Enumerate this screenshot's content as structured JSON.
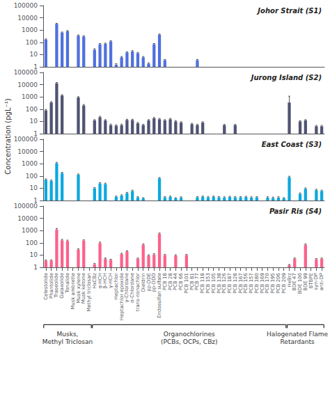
{
  "chart_data": [
    {
      "type": "bar",
      "title": "Johor Strait (S1)",
      "ylabel": "Concentration (pgL⁻¹)",
      "categories": [
        "Celestolide",
        "Phantolide",
        "Traseolide",
        "Galaxolide",
        "Tonalide",
        "Musk ambrette",
        "Musk xylene",
        "Musk ketone",
        "Methyl triclosan",
        "HxCBz",
        "α-HCH",
        "β-HCH",
        "γ-HCH",
        "Heptachlor",
        "Heptachlor epoxide",
        "γ-Chlordane",
        "α-Chlordane",
        "trans-nonachlor",
        "Dieldrin",
        "pp-DDE",
        "pp-DDD",
        "Endosulfan sulfate",
        "PCB 18",
        "PCB 28",
        "PCB 44",
        "PCB 66",
        "PCB 101",
        "PCB 81",
        "PCB 77",
        "PCB 118",
        "PCB 153",
        "PCB 105",
        "PCB 138",
        "PCB 126",
        "PCB 187",
        "PCB 128",
        "PCB 167",
        "PCB 156",
        "PCB 157",
        "PCB 180",
        "PCB 169",
        "PCB 170",
        "PCB 195",
        "PCB 206",
        "PCB 209",
        "HxBrz",
        "BDE 47",
        "BDE 100",
        "BDE 99",
        "BTBPE",
        "syn-DP",
        "anti-DP"
      ],
      "values": [
        170,
        null,
        3200,
        620,
        820,
        null,
        350,
        300,
        null,
        25,
        70,
        75,
        120,
        1.5,
        6,
        15,
        18,
        13,
        6,
        1.8,
        70,
        420,
        3.5,
        null,
        null,
        null,
        null,
        null,
        3.5,
        null,
        null,
        null,
        null,
        null,
        null,
        null,
        null,
        null,
        null,
        null,
        null,
        null,
        null,
        null,
        null,
        null,
        null,
        null,
        null,
        null,
        null,
        null
      ],
      "errors": [
        20,
        null,
        400,
        80,
        100,
        null,
        50,
        40,
        null,
        5,
        10,
        12,
        18,
        0.3,
        1,
        2,
        3,
        2,
        1,
        0.3,
        10,
        60,
        0.5,
        null,
        null,
        null,
        null,
        null,
        0.5,
        null,
        null,
        null,
        null,
        null,
        null,
        null,
        null,
        null,
        null,
        null,
        null,
        null,
        null,
        null,
        null,
        null,
        null,
        null,
        null,
        null,
        null,
        null
      ],
      "ylim": [
        1,
        100000
      ],
      "yticks": [
        1,
        10,
        100,
        1000,
        10000,
        100000
      ],
      "log": "y",
      "grid": false,
      "tick_labels": "y"
    },
    {
      "type": "bar",
      "title": "Jurong Island (S2)",
      "categories": [
        "Celestolide",
        "Phantolide",
        "Traseolide",
        "Galaxolide",
        "Tonalide",
        "Musk ambrette",
        "Musk xylene",
        "Musk ketone",
        "Methyl triclosan",
        "HxCBz",
        "α-HCH",
        "β-HCH",
        "γ-HCH",
        "Heptachlor",
        "Heptachlor epoxide",
        "γ-Chlordane",
        "α-Chlordane",
        "trans-nonachlor",
        "Dieldrin",
        "pp-DDE",
        "pp-DDD",
        "Endosulfan sulfate",
        "PCB 18",
        "PCB 28",
        "PCB 44",
        "PCB 66",
        "PCB 101",
        "PCB 81",
        "PCB 77",
        "PCB 118",
        "PCB 153",
        "PCB 105",
        "PCB 138",
        "PCB 126",
        "PCB 187",
        "PCB 128",
        "PCB 167",
        "PCB 156",
        "PCB 157",
        "PCB 180",
        "PCB 169",
        "PCB 170",
        "PCB 195",
        "PCB 206",
        "PCB 209",
        "HxBrz",
        "BDE 47",
        "BDE 100",
        "BDE 99",
        "BTBPE",
        "syn-DP",
        "anti-DP"
      ],
      "values": [
        80,
        350,
        13000,
        1300,
        null,
        null,
        900,
        200,
        null,
        12,
        22,
        12,
        5,
        4.5,
        5,
        13,
        13,
        7,
        5,
        12,
        18,
        15,
        12,
        15,
        10,
        8,
        null,
        6,
        5,
        8,
        null,
        null,
        null,
        5,
        null,
        5,
        null,
        null,
        null,
        null,
        null,
        null,
        null,
        null,
        null,
        350,
        null,
        10,
        12,
        null,
        4,
        4
      ],
      "errors": [
        15,
        60,
        2000,
        200,
        null,
        null,
        150,
        40,
        null,
        2,
        4,
        2,
        1,
        0.8,
        1,
        2,
        2,
        1.2,
        0.8,
        2,
        3,
        2.5,
        2,
        2.5,
        1.8,
        1.5,
        null,
        1,
        0.8,
        1.5,
        null,
        null,
        null,
        0.8,
        null,
        0.8,
        null,
        null,
        null,
        null,
        null,
        null,
        null,
        null,
        null,
        800,
        null,
        1.5,
        2,
        null,
        0.7,
        0.7
      ],
      "ylim": [
        1,
        100000
      ],
      "yticks": [
        1,
        10,
        100,
        1000,
        10000,
        100000
      ],
      "log": "y",
      "grid": false,
      "tick_labels": "y"
    },
    {
      "type": "bar",
      "title": "East Coast (S3)",
      "categories": [
        "Celestolide",
        "Phantolide",
        "Traseolide",
        "Galaxolide",
        "Tonalide",
        "Musk ambrette",
        "Musk xylene",
        "Musk ketone",
        "Methyl triclosan",
        "HxCBz",
        "α-HCH",
        "β-HCH",
        "γ-HCH",
        "Heptachlor",
        "Heptachlor epoxide",
        "γ-Chlordane",
        "α-Chlordane",
        "trans-nonachlor",
        "Dieldrin",
        "pp-DDE",
        "pp-DDD",
        "Endosulfan sulfate",
        "PCB 18",
        "PCB 28",
        "PCB 44",
        "PCB 66",
        "PCB 101",
        "PCB 81",
        "PCB 77",
        "PCB 118",
        "PCB 153",
        "PCB 105",
        "PCB 138",
        "PCB 126",
        "PCB 187",
        "PCB 128",
        "PCB 167",
        "PCB 156",
        "PCB 157",
        "PCB 180",
        "PCB 169",
        "PCB 170",
        "PCB 195",
        "PCB 206",
        "PCB 209",
        "HxBrz",
        "BDE 47",
        "BDE 100",
        "BDE 99",
        "BTBPE",
        "syn-DP",
        "anti-DP"
      ],
      "values": [
        50,
        40,
        1100,
        170,
        null,
        null,
        125,
        null,
        null,
        10,
        25,
        22,
        null,
        2,
        2.5,
        4,
        6,
        1.8,
        1.5,
        null,
        null,
        65,
        1.8,
        2,
        1.5,
        1.7,
        null,
        null,
        1.8,
        2,
        1.8,
        2,
        1.8,
        1.7,
        1.9,
        1.8,
        1.8,
        1.9,
        1.7,
        1.8,
        null,
        1.7,
        1.6,
        1.7,
        1.5,
        80,
        null,
        3.5,
        9,
        null,
        7,
        6
      ],
      "errors": [
        8,
        7,
        200,
        30,
        null,
        null,
        20,
        null,
        null,
        1.5,
        4,
        4,
        null,
        0.3,
        0.4,
        0.6,
        1,
        0.3,
        0.2,
        null,
        null,
        10,
        0.3,
        0.3,
        0.2,
        0.3,
        null,
        null,
        0.3,
        0.3,
        0.3,
        0.3,
        0.3,
        0.3,
        0.3,
        0.3,
        0.3,
        0.3,
        0.3,
        0.3,
        null,
        0.3,
        0.3,
        0.3,
        0.2,
        15,
        null,
        0.6,
        1.5,
        null,
        1.2,
        1
      ],
      "ylim": [
        1,
        100000
      ],
      "yticks": [
        1,
        10,
        100,
        1000,
        10000,
        100000
      ],
      "log": "y",
      "grid": false,
      "tick_labels": "y"
    },
    {
      "type": "bar",
      "title": "Pasir Ris (S4)",
      "categories": [
        "Celestolide",
        "Phantolide",
        "Traseolide",
        "Galaxolide",
        "Tonalide",
        "Musk ambrette",
        "Musk xylene",
        "Musk ketone",
        "Methyl triclosan",
        "HxCBz",
        "α-HCH",
        "β-HCH",
        "γ-HCH",
        "Heptachlor",
        "Heptachlor epoxide",
        "γ-Chlordane",
        "α-Chlordane",
        "trans-nonachlor",
        "Dieldrin",
        "pp-DDE",
        "pp-DDD",
        "Endosulfan sulfate",
        "PCB 18",
        "PCB 28",
        "PCB 44",
        "PCB 66",
        "PCB 101",
        "PCB 81",
        "PCB 77",
        "PCB 118",
        "PCB 153",
        "PCB 105",
        "PCB 138",
        "PCB 126",
        "PCB 187",
        "PCB 128",
        "PCB 167",
        "PCB 156",
        "PCB 157",
        "PCB 180",
        "PCB 169",
        "PCB 170",
        "PCB 195",
        "PCB 206",
        "PCB 209",
        "HxBrz",
        "BDE 47",
        "BDE 100",
        "BDE 99",
        "BTBPE",
        "syn-DP",
        "anti-DP"
      ],
      "values": [
        3.5,
        3.5,
        1200,
        160,
        140,
        null,
        28,
        150,
        null,
        1.8,
        95,
        5,
        4,
        null,
        12,
        20,
        null,
        5,
        70,
        9,
        11,
        550,
        10,
        null,
        9,
        null,
        10,
        null,
        null,
        null,
        null,
        null,
        null,
        null,
        null,
        null,
        null,
        null,
        null,
        null,
        null,
        null,
        null,
        null,
        null,
        1.5,
        5,
        null,
        70,
        null,
        4.5,
        5
      ],
      "errors": [
        0.5,
        0.5,
        300,
        30,
        25,
        null,
        5,
        25,
        null,
        0.3,
        20,
        0.8,
        0.6,
        null,
        2,
        3,
        null,
        0.8,
        12,
        1.5,
        1.8,
        80,
        1.5,
        null,
        1.5,
        null,
        1.5,
        null,
        null,
        null,
        null,
        null,
        null,
        null,
        null,
        null,
        null,
        null,
        null,
        null,
        null,
        null,
        null,
        null,
        null,
        0.2,
        0.8,
        null,
        12,
        null,
        0.7,
        0.8
      ],
      "ylim": [
        1,
        100000
      ],
      "yticks": [
        1,
        10,
        100,
        1000,
        10000,
        100000
      ],
      "log": "y",
      "grid": false,
      "annotations": [
        {
          "text": "Musks,\nMethyl Triclosan",
          "from": "Celestolide",
          "to": "Methyl triclosan"
        },
        {
          "text": "Organochlorines\n(PCBs, OCPs, CBz)",
          "from": "HxCBz",
          "to": "PCB 209"
        },
        {
          "text": "Halogenated Flame\nRetardants",
          "from": "HxBrz",
          "to": "anti-DP"
        }
      ]
    }
  ]
}
